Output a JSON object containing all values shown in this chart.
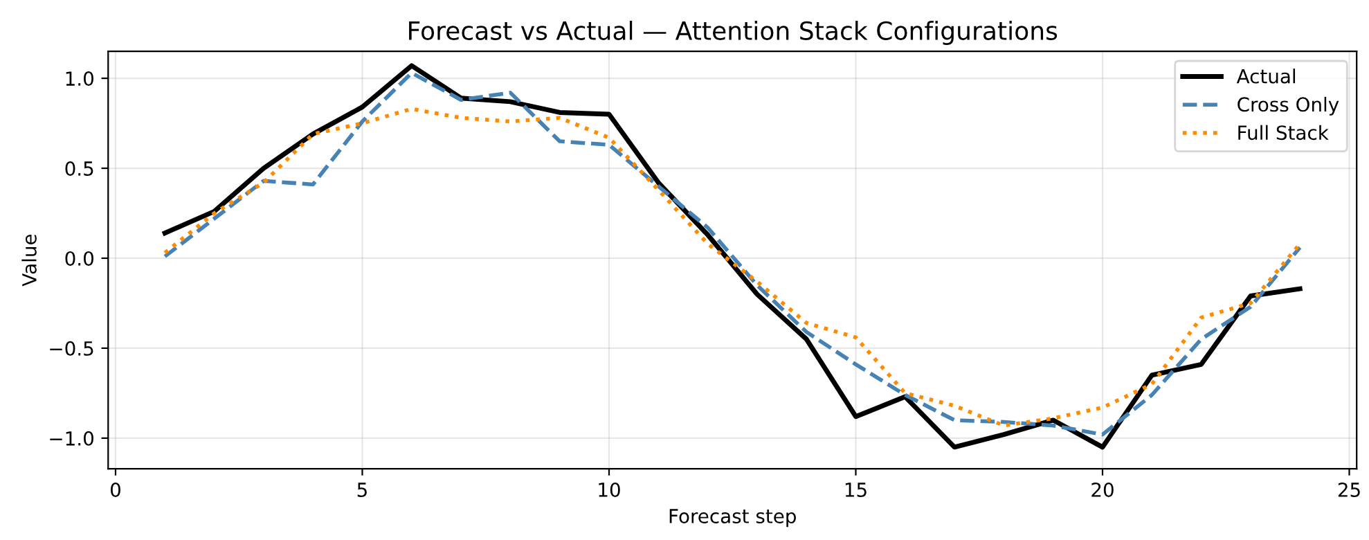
{
  "chart_data": {
    "type": "line",
    "title": "Forecast vs Actual — Attention Stack Configurations",
    "xlabel": "Forecast step",
    "ylabel": "Value",
    "x": [
      1,
      2,
      3,
      4,
      5,
      6,
      7,
      8,
      9,
      10,
      11,
      12,
      13,
      14,
      15,
      16,
      17,
      18,
      19,
      20,
      21,
      22,
      23,
      24
    ],
    "series": [
      {
        "name": "Actual",
        "color": "#000000",
        "line_style": "solid",
        "values": [
          0.14,
          0.26,
          0.5,
          0.69,
          0.84,
          1.07,
          0.89,
          0.87,
          0.81,
          0.8,
          0.42,
          0.13,
          -0.2,
          -0.45,
          -0.88,
          -0.77,
          -1.05,
          -0.98,
          -0.9,
          -1.05,
          -0.65,
          -0.59,
          -0.21,
          -0.17
        ]
      },
      {
        "name": "Cross Only",
        "color": "#4682b4",
        "line_style": "dashed",
        "values": [
          0.01,
          0.22,
          0.43,
          0.41,
          0.76,
          1.03,
          0.88,
          0.92,
          0.65,
          0.63,
          0.4,
          0.17,
          -0.15,
          -0.41,
          -0.59,
          -0.76,
          -0.9,
          -0.91,
          -0.93,
          -0.98,
          -0.76,
          -0.45,
          -0.27,
          0.06
        ]
      },
      {
        "name": "Full Stack",
        "color": "#ff8c00",
        "line_style": "dotted",
        "values": [
          0.03,
          0.25,
          0.42,
          0.69,
          0.75,
          0.83,
          0.78,
          0.76,
          0.78,
          0.67,
          0.38,
          0.08,
          -0.13,
          -0.36,
          -0.44,
          -0.75,
          -0.82,
          -0.93,
          -0.89,
          -0.83,
          -0.7,
          -0.33,
          -0.25,
          0.08
        ]
      }
    ],
    "xlim": [
      -0.15,
      25.15
    ],
    "xticks": [
      0,
      5,
      10,
      15,
      20,
      25
    ],
    "ylim": [
      -1.17,
      1.15
    ],
    "yticks": [
      {
        "value": -1,
        "label": "−1.0"
      },
      {
        "value": -0.5,
        "label": "−0.5"
      },
      {
        "value": 0,
        "label": "0.0"
      },
      {
        "value": 0.5,
        "label": "0.5"
      },
      {
        "value": 1,
        "label": "1.0"
      }
    ],
    "grid": true,
    "legend": "top right",
    "marker": "none"
  }
}
